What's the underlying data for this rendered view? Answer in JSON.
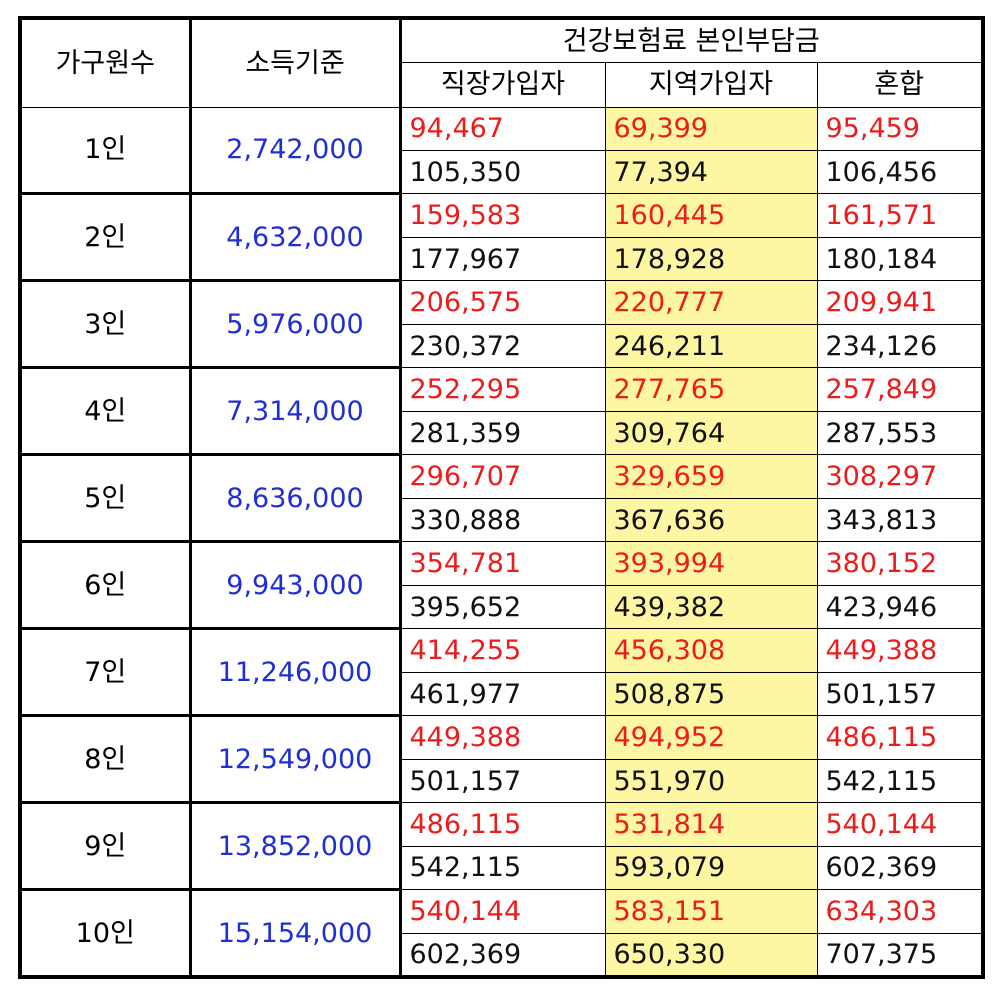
{
  "headers": {
    "household": "가구원수",
    "income": "소득기준",
    "premium_group": "건강보험료 본인부담금",
    "employee": "직장가입자",
    "regional": "지역가입자",
    "mixed": "혼합"
  },
  "rows": [
    {
      "size": "1인",
      "income": "2,742,000",
      "employee": [
        "94,467",
        "105,350"
      ],
      "regional": [
        "69,399",
        "77,394"
      ],
      "mixed": [
        "95,459",
        "106,456"
      ]
    },
    {
      "size": "2인",
      "income": "4,632,000",
      "employee": [
        "159,583",
        "177,967"
      ],
      "regional": [
        "160,445",
        "178,928"
      ],
      "mixed": [
        "161,571",
        "180,184"
      ]
    },
    {
      "size": "3인",
      "income": "5,976,000",
      "employee": [
        "206,575",
        "230,372"
      ],
      "regional": [
        "220,777",
        "246,211"
      ],
      "mixed": [
        "209,941",
        "234,126"
      ]
    },
    {
      "size": "4인",
      "income": "7,314,000",
      "employee": [
        "252,295",
        "281,359"
      ],
      "regional": [
        "277,765",
        "309,764"
      ],
      "mixed": [
        "257,849",
        "287,553"
      ]
    },
    {
      "size": "5인",
      "income": "8,636,000",
      "employee": [
        "296,707",
        "330,888"
      ],
      "regional": [
        "329,659",
        "367,636"
      ],
      "mixed": [
        "308,297",
        "343,813"
      ]
    },
    {
      "size": "6인",
      "income": "9,943,000",
      "employee": [
        "354,781",
        "395,652"
      ],
      "regional": [
        "393,994",
        "439,382"
      ],
      "mixed": [
        "380,152",
        "423,946"
      ]
    },
    {
      "size": "7인",
      "income": "11,246,000",
      "employee": [
        "414,255",
        "461,977"
      ],
      "regional": [
        "456,308",
        "508,875"
      ],
      "mixed": [
        "449,388",
        "501,157"
      ]
    },
    {
      "size": "8인",
      "income": "12,549,000",
      "employee": [
        "449,388",
        "501,157"
      ],
      "regional": [
        "494,952",
        "551,970"
      ],
      "mixed": [
        "486,115",
        "542,115"
      ]
    },
    {
      "size": "9인",
      "income": "13,852,000",
      "employee": [
        "486,115",
        "542,115"
      ],
      "regional": [
        "531,814",
        "593,079"
      ],
      "mixed": [
        "540,144",
        "602,369"
      ]
    },
    {
      "size": "10인",
      "income": "15,154,000",
      "employee": [
        "540,144",
        "602,369"
      ],
      "regional": [
        "583,151",
        "650,330"
      ],
      "mixed": [
        "634,303",
        "707,375"
      ]
    }
  ],
  "colors": {
    "upper_value": "#ea1c1c",
    "income": "#1f2fd6",
    "regional_highlight": "#fdf6a3"
  }
}
